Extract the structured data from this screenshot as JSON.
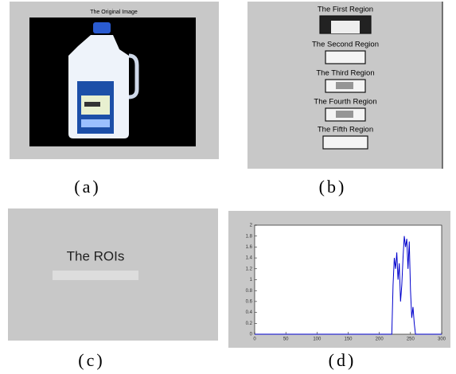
{
  "panels": {
    "a": {
      "title": "The Original Image",
      "caption": "(a)"
    },
    "b": {
      "titles": [
        "The First Region",
        "The Second Region",
        "The Third Region",
        "The Fourth Region",
        "The Fifth Region"
      ],
      "caption": "(b)"
    },
    "c": {
      "text": "The ROIs",
      "caption": "(c)"
    },
    "d": {
      "caption": "(d)"
    }
  },
  "chart_data": {
    "type": "line",
    "x": [
      0,
      220,
      222,
      224,
      226,
      228,
      230,
      232,
      234,
      236,
      238,
      240,
      242,
      244,
      246,
      248,
      250,
      252,
      254,
      256,
      258,
      260,
      300
    ],
    "series": [
      {
        "color": "#0000cc",
        "values": [
          0,
          0,
          0.9,
          1.4,
          1.2,
          1.5,
          1.0,
          1.3,
          0.6,
          0.9,
          1.4,
          1.8,
          1.6,
          1.75,
          1.2,
          1.7,
          0.8,
          0.3,
          0.5,
          0.2,
          0,
          0,
          0
        ]
      }
    ],
    "xlim": [
      0,
      300
    ],
    "xticks": [
      0,
      50,
      100,
      150,
      200,
      250,
      300
    ],
    "ylim": [
      0,
      2
    ],
    "yticks": [
      0,
      0.2,
      0.4,
      0.6,
      0.8,
      1,
      1.2,
      1.4,
      1.6,
      1.8,
      2
    ]
  }
}
